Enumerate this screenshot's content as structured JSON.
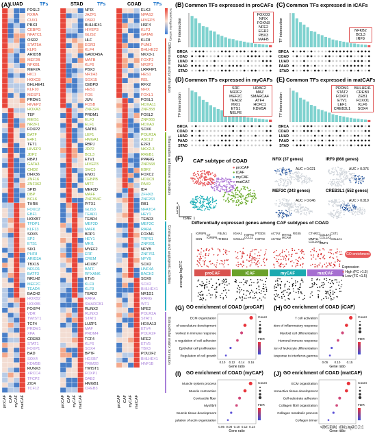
{
  "panelA": {
    "label": "(A)",
    "headers": [
      {
        "name": "LUAD",
        "tf": "TFs"
      },
      {
        "name": "STAD",
        "tf": "TFs"
      },
      {
        "name": "COAD",
        "tf": "TFs"
      }
    ],
    "xlabels": [
      "proCAF",
      "iCAF",
      "myCAF",
      "matCAF"
    ],
    "colorbar_label": "Scaled regulon activity",
    "categories": [
      "Differentiation and proliferation",
      "Inflammation and immune activation",
      "Contractile and angiogenic activities",
      "Extracellular matrix formation"
    ],
    "category_colors": [
      "#e0523b",
      "#8ab427",
      "#2aafc5",
      "#a77fd8"
    ],
    "tf_lists": [
      [
        "FOSL2",
        "RXRA",
        "CUX1",
        "PBX3",
        "CEBPG",
        "NFATC1",
        "OSR2",
        "STAT5A",
        "KLF5",
        "ARID5B",
        "MEF2B",
        "NFKB1",
        "MEF2A",
        "HIC1",
        "HOXC8",
        "BHLHE41",
        "KLF10",
        "MESP1",
        "PRDM1",
        "HIVEP2",
        "HOXA3",
        "TEF",
        "MEIS1",
        "NR2F1",
        "FOXP2",
        "BATF",
        "E4F1",
        "TET1",
        "HIVEP3",
        "JDP2",
        "RBPJ",
        "GATA3",
        "CHD2",
        "DHX36",
        "ZNF16",
        "ZNF362",
        "SPIB",
        "DBP",
        "BCL6",
        "THRB",
        "FOXC2",
        "EBF1",
        "HOXB7",
        "TFDP1",
        "KLF13",
        "SOX5",
        "SP2",
        "ETS1",
        "SIX1",
        "PHF8",
        "ARID3A",
        "TBX15",
        "NR1D1",
        "BATF3",
        "NR1H2",
        "MEF2C",
        "TEAD4",
        "BACH2",
        "HOXB2",
        "HOXB5",
        "FOXP4",
        "VDR",
        "TWIST1",
        "TCF4",
        "PRDM1",
        "XPA",
        "CREB3",
        "STAT1",
        "FOXP1",
        "BAD",
        "SOX4",
        "KDM5B",
        "RUNX3",
        "XRCC4",
        "TFCP2",
        "ZIC4",
        "TCF12"
      ],
      [
        "NFIX",
        "JAZF1",
        "OSR2",
        "BHLHE41",
        "HIVEP3",
        "GLIS2",
        "HLF",
        "EGR3",
        "KLF4",
        "GADD45A",
        "MAFB",
        "KLF6",
        "PBX3",
        "NR1H3",
        "SOX15",
        "CEBPD",
        "HES1",
        "FOS",
        "JUN",
        "FOSB",
        "ZNF324",
        "PRDM1",
        "ELF3",
        "ELF1",
        "SATB1",
        "LEF1",
        "HMGA1",
        "RBPJ",
        "JDP2",
        "BCL3",
        "ETV1",
        "HIVEP3",
        "SMC3",
        "ENO1",
        "CEBPB",
        "MITF",
        "MEF2D",
        "MAFF",
        "ZNF354C",
        "PITX1",
        "GLIS3",
        "TEAD1",
        "TEAD4",
        "MEF2D",
        "MAFK",
        "BDP1",
        "HEY1",
        "MKI1",
        "MYEF2",
        "ERF",
        "CREM",
        "HOXB7",
        "BATF",
        "RFXANK",
        "ETV5",
        "KLF9",
        "KLF9",
        "TEAD2",
        "RARA",
        "SMARCB1",
        "RUNX2",
        "RUNX3",
        "STAT1",
        "LUZP1",
        "MAF",
        "PRDM4",
        "TCF4",
        "KLF6",
        "SOX4",
        "BPTF",
        "HOXB7",
        "TRIM28",
        "TWIST1",
        "FOXP1",
        "DAB2",
        "HMGB1",
        "CREB3"
      ],
      [
        "ELK3",
        "NPAS2",
        "HIVEP3",
        "HSF4",
        "KLF3",
        "GATA6",
        "KLF8",
        "PUM3",
        "BHLHE22",
        "NKX3-1",
        "FOXP2",
        "NR2F1",
        "LRRFIP1",
        "HES1",
        "REL",
        "RFX2",
        "NFIX",
        "FOXL1",
        "FOSL1",
        "HOXA11",
        "ZNF358",
        "FOSL2",
        "ZNF365",
        "HOXA3",
        "SOX6",
        "POLR2A",
        "ASCL2",
        "E2F3",
        "NKX2-3",
        "RREB1",
        "PPARG",
        "ZNF568",
        "EBF2",
        "FOXC2",
        "HOXC9",
        "PAX9",
        "ID4",
        "ZFHX3",
        "ZNF263",
        "RB1",
        "NFATC4",
        "HEY1",
        "TEAD3",
        "MEF2C",
        "RARA",
        "FOXM1",
        "TRPS1",
        "ZNF281",
        "NFYB",
        "ZNF761",
        "NFYB",
        "SOX2",
        "HNF4A",
        "BACH2",
        "SOX9",
        "SOX2",
        "BHLHE41",
        "NR1D1",
        "RARG",
        "WT1",
        "NFE2",
        "POLR2A",
        "STAT1",
        "HOXA13",
        "ETV4",
        "POLR2F",
        "NFE2",
        "ETV5",
        "TBX3",
        "POU2F2",
        "BHLHE41",
        "HNF1B"
      ]
    ]
  },
  "panelB": {
    "label": "(B)",
    "title": "Common TFs expressed in proCAFs",
    "ylabel": "TF intersection",
    "rows": [
      "BRCA",
      "COAD",
      "LUAD",
      "PAAD",
      "STAD"
    ],
    "box_tfs": [
      "FOXO3",
      "NFIX",
      "FOXN3",
      "NFE2",
      "EGR2",
      "PBX3",
      "MAFB"
    ]
  },
  "panelC": {
    "label": "(C)",
    "title": "Common TFs expressed in iCAFs",
    "ylabel": "TF intersection",
    "rows": [
      "BRCA",
      "COAD",
      "LUAD",
      "PAAD",
      "STAD"
    ],
    "box_tfs": [
      "NFKB2",
      "BCL3",
      "IRF9"
    ]
  },
  "panelD": {
    "label": "(D)",
    "title": "Common TFs expressed in myCAFs",
    "ylabel": "TF intersection",
    "rows": [
      "BRCA",
      "COAD",
      "LUAD",
      "PAAD",
      "STAD"
    ],
    "box_tfs_left": [
      "SRF",
      "NR2F2",
      "MEF2C",
      "TEAD2",
      "MXI1",
      "ETS1",
      "NELFE"
    ],
    "box_tfs_right": [
      "HDAC2",
      "MAZ",
      "SMARCA4",
      "ATF4",
      "HCFC1",
      "KDM5A"
    ]
  },
  "panelE": {
    "label": "(E)",
    "title": "Common TFs expressed in matCAFs",
    "ylabel": "TF intersection",
    "rows": [
      "BRCA",
      "COAD",
      "LUAD",
      "PAAD",
      "STAD"
    ],
    "box_tfs_left": [
      "PRDM1",
      "STAT2",
      "FOXP1",
      "ETV1",
      "LEF1",
      "CREB3L1"
    ],
    "box_tfs_right": [
      "BHLHE41",
      "CREB3",
      "ZEB1",
      "FOXO1",
      "KLF6",
      "SOX4"
    ]
  },
  "panelF": {
    "label": "(F)",
    "title": "CAF subtype of COAD",
    "legend": [
      {
        "name": "proCAF",
        "color": "#e8585a"
      },
      {
        "name": "iCAF",
        "color": "#6aaa2a"
      },
      {
        "name": "myCAF",
        "color": "#1fb0b8"
      },
      {
        "name": "matCAF",
        "color": "#b07ad8"
      }
    ],
    "axis_x": "tSNE_1",
    "axis_y": "tSNE_2",
    "feature_plots": [
      {
        "title": "NFIX (37 genes)",
        "auc": "AUC > 0.021"
      },
      {
        "title": "IRF9 (868 genes)",
        "auc": "AUC > 0.076"
      },
      {
        "title": "MEF2C (243 genes)",
        "auc": "AUC > 0.046"
      },
      {
        "title": "CREB3L1 (552 genes)",
        "auc": "AUC > 0.010"
      }
    ],
    "deg_title": "Differentially expressed genes among CAF subtypes of COAD",
    "deg_ylabel": "average log2FC",
    "deg_groups": [
      {
        "name": "proCAF",
        "color": "#d9534f"
      },
      {
        "name": "iCAF",
        "color": "#6aa12a"
      },
      {
        "name": "myCAF",
        "color": "#1aa9b0"
      },
      {
        "name": "matCAF",
        "color": "#a66fd1"
      }
    ],
    "go_button": "GO enrichment",
    "expr_legend_title": "Expression",
    "expr_high": "High (FC >1.5)",
    "expr_low": "Low (FC <1.5)",
    "gene_labels_pro": [
      "IGFBP5",
      "C7",
      "FBLN1",
      "GSN",
      "IGFBP6",
      "ITHBS4"
    ],
    "gene_labels_i": [
      "IGHA1",
      "HSPA6",
      "PTGDS",
      "CXCL14",
      "CCL11",
      "HSPA8"
    ],
    "gene_labels_my": [
      "ACTA2",
      "MYH11",
      "RGS5",
      "ACTG2",
      "MCAM"
    ],
    "gene_labels_mat": [
      "CTHRC1",
      "COL3A1",
      "CST1",
      "MMP11",
      "COL1A2",
      "COL1A1",
      "COL10A1",
      "MMP1"
    ]
  },
  "panelG": {
    "label": "(G)",
    "title": "GO enrichment of COAD (proCAF)",
    "xlabel": "Gene ratio",
    "terms": [
      "ECM organization",
      "Regulation of vasculature development",
      "Neutrophil activation involved in immune response",
      "Positive regulation of cell adhesion",
      "Epithelial cell proliferation",
      "Regulation of cell growth"
    ],
    "ticks": [
      "0.10",
      "0.12",
      "0.14",
      "0.16"
    ]
  },
  "panelH": {
    "label": "(H)",
    "title": "GO enrichment of COAD (iCAF)",
    "xlabel": "Gene ratio",
    "terms": [
      "T cell activation",
      "Regulation of inflammatory response",
      "Myeloid cell differentiation",
      "Humoral immune response",
      "Regulation of leukocyte differentiation",
      "Response to interferon-gamma"
    ],
    "ticks": [
      "0.05",
      "0.10",
      "0.15"
    ]
  },
  "panelI": {
    "label": "(I)",
    "title": "GO enrichment of COAD (myCAF)",
    "xlabel": "Gene ratio",
    "terms": [
      "Muscle system process",
      "Muscle contraction",
      "Contractile fiber",
      "Myofibril",
      "Muscle tissue development",
      "Regulation of actin organization"
    ],
    "ticks": [
      "0.06",
      "0.08",
      "0.10",
      "0.12",
      "0.14"
    ]
  },
  "panelJ": {
    "label": "(J)",
    "title": "GO enrichment of COAD (matCAF)",
    "xlabel": "Gene ratio",
    "terms": [
      "ECM organization",
      "Connective tissue development",
      "Cell-substrate adhesion",
      "Collagen fibril organization",
      "Collagen metabolic process",
      "Collagen trimer"
    ],
    "ticks": [
      "0.06",
      "0.08",
      "0.10",
      "0.12"
    ]
  },
  "go_legend": {
    "count": "Count",
    "fdr": "FDR"
  },
  "watermark": "CSDN @biq2024"
}
